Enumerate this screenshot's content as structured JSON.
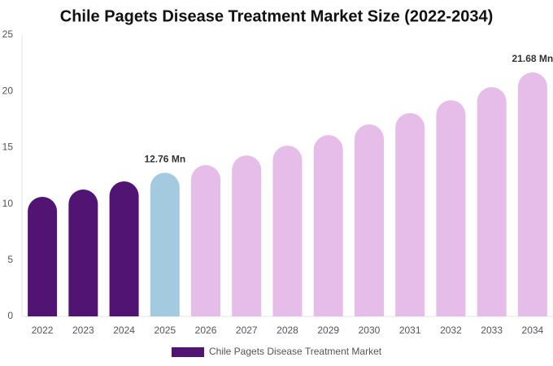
{
  "chart_data": {
    "type": "bar",
    "title": "Chile Pagets Disease Treatment Market Size (2022-2034)",
    "categories": [
      "2022",
      "2023",
      "2024",
      "2025",
      "2026",
      "2027",
      "2028",
      "2029",
      "2030",
      "2031",
      "2032",
      "2033",
      "2034"
    ],
    "series": [
      {
        "name": "Chile Pagets Disease Treatment Market",
        "color": "#521472",
        "colors": [
          "#521472",
          "#521472",
          "#521472",
          "#a3cadf",
          "#e6bce9",
          "#e6bce9",
          "#e6bce9",
          "#e6bce9",
          "#e6bce9",
          "#e6bce9",
          "#e6bce9",
          "#e6bce9",
          "#e6bce9"
        ],
        "values": [
          10.62,
          11.27,
          11.99,
          12.76,
          13.44,
          14.3,
          15.17,
          16.1,
          17.05,
          18.06,
          19.2,
          20.37,
          21.68
        ],
        "value_labels": [
          null,
          null,
          null,
          "12.76 Mn",
          null,
          null,
          null,
          null,
          null,
          null,
          null,
          null,
          "21.68 Mn"
        ]
      }
    ],
    "ylim": [
      0,
      25
    ],
    "yticks": [
      0,
      5,
      10,
      15,
      20,
      25
    ],
    "grid": false,
    "legend": "bottom"
  }
}
